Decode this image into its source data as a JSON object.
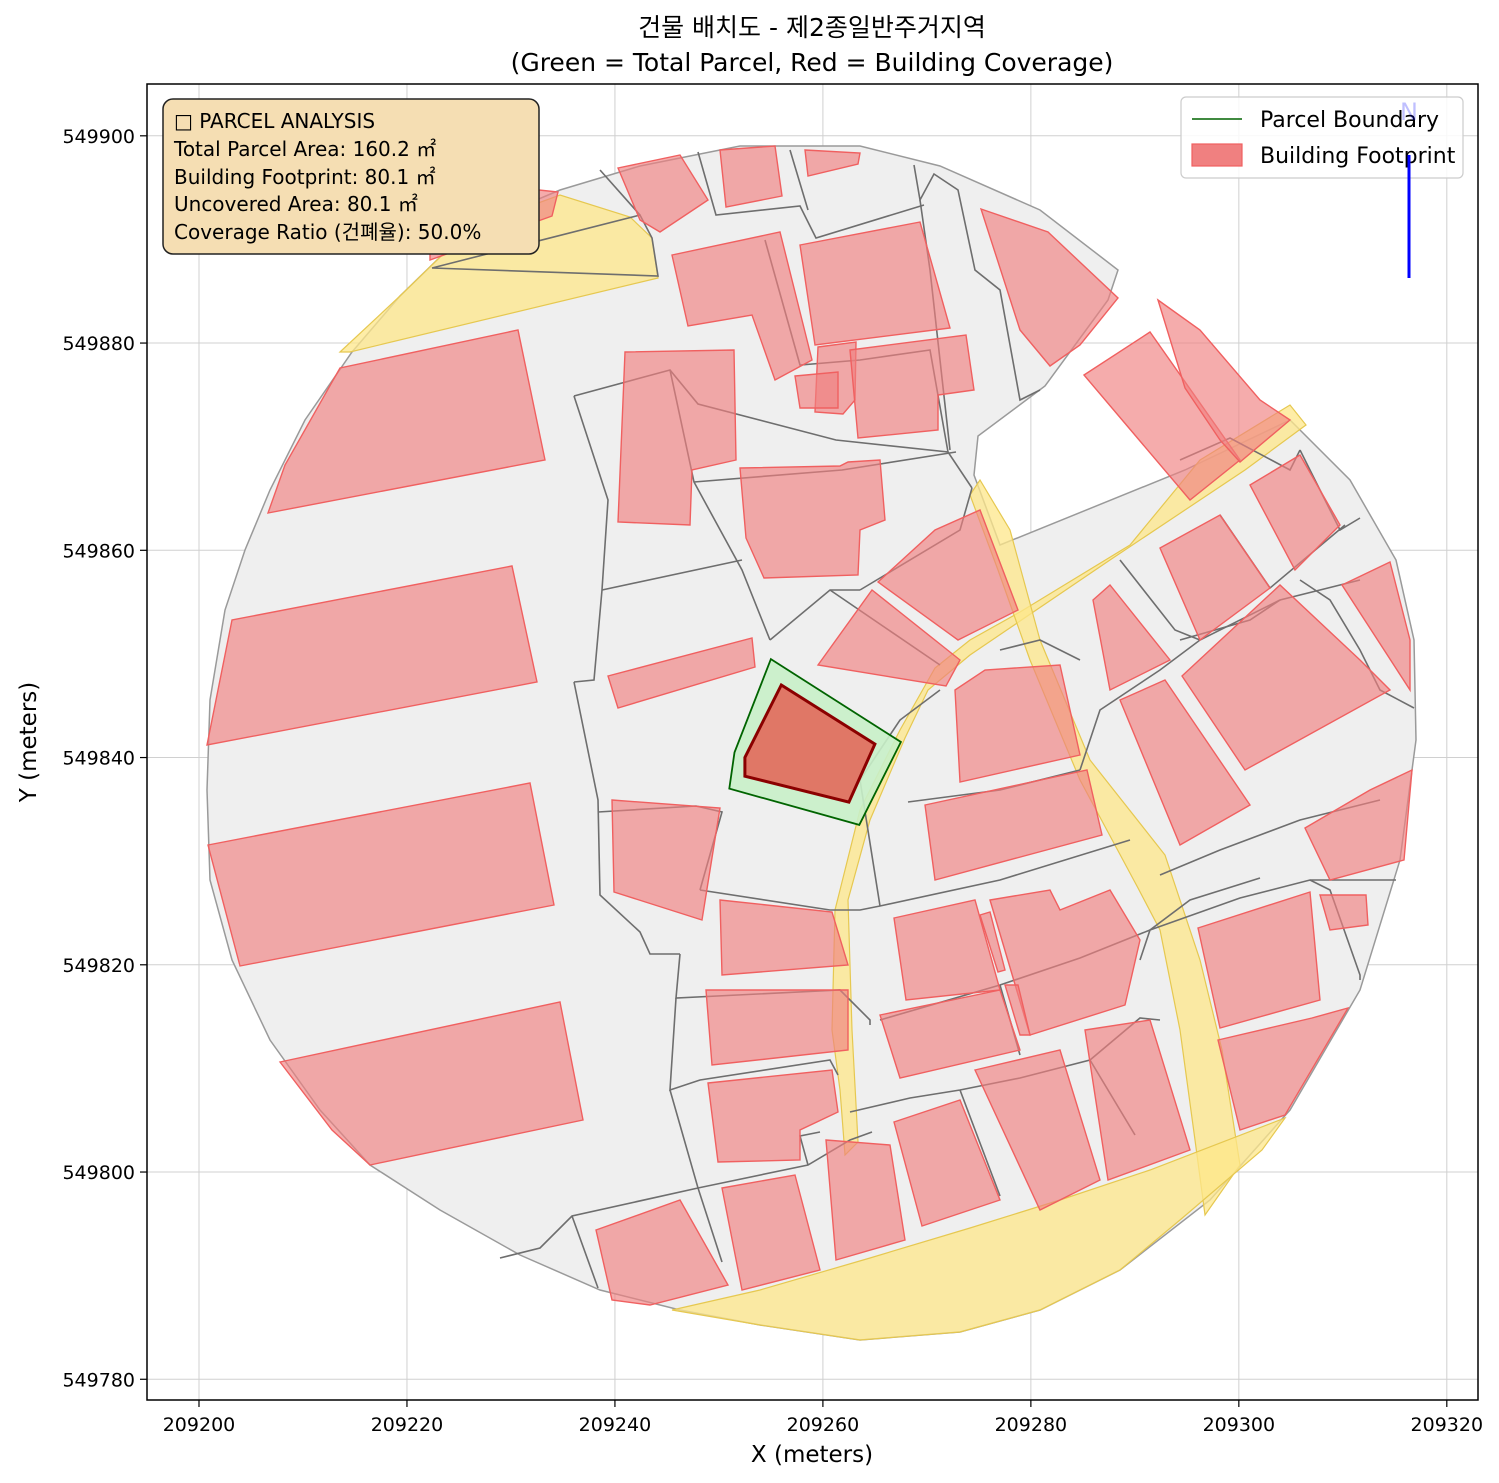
{
  "title": {
    "line1": "건물 배치도 - 제2종일반주거지역",
    "line2": "(Green = Total Parcel, Red = Building Coverage)"
  },
  "axes": {
    "xlabel": "X (meters)",
    "ylabel": "Y (meters)",
    "xticks": [
      "209200",
      "209220",
      "209240",
      "209260",
      "209280",
      "209300",
      "209320"
    ],
    "yticks": [
      "549780",
      "549800",
      "549820",
      "549840",
      "549860",
      "549880",
      "549900"
    ],
    "xlim": [
      209195,
      209323
    ],
    "ylim": [
      549778,
      549905
    ],
    "grid": true
  },
  "info_box": {
    "heading": "□ PARCEL ANALYSIS",
    "total_area": "Total Parcel Area: 160.2 ㎡",
    "footprint": "Building Footprint: 80.1 ㎡",
    "uncovered": "Uncovered Area: 80.1 ㎡",
    "coverage": "Coverage Ratio (건폐율): 50.0%"
  },
  "legend": {
    "parcel_boundary": "Parcel Boundary",
    "building_footprint": "Building Footprint",
    "placement": "top-right"
  },
  "colors": {
    "parcel_fill": "#c8f0c8",
    "parcel_edge": "#006400",
    "building_fill": "#f08080",
    "building_edge": "#8b0000",
    "road": "#fde78a",
    "background_parcels": "#f0f0f0",
    "north_arrow": "#0000ff"
  },
  "north_arrow_label": "N",
  "chart_data": {
    "type": "map",
    "target_parcel": {
      "total_area_m2": 160.2,
      "building_footprint_m2": 80.1,
      "uncovered_area_m2": 80.1,
      "coverage_ratio_pct": 50.0,
      "parcel_polygon": [
        [
          209255,
          549849.5
        ],
        [
          209267.5,
          549841.5
        ],
        [
          209263.5,
          549833.5
        ],
        [
          209251,
          549837
        ],
        [
          209251.5,
          549840.5
        ]
      ],
      "building_polygon": [
        [
          209256,
          549847
        ],
        [
          209265,
          549841.3
        ],
        [
          209262.5,
          549835.7
        ],
        [
          209252.5,
          549838.2
        ],
        [
          209252.5,
          549840
        ]
      ]
    }
  }
}
